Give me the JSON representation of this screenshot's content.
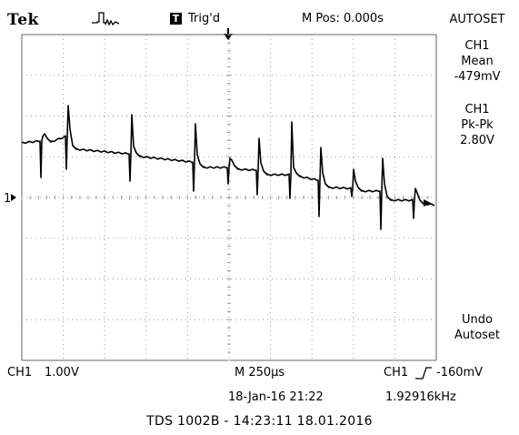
{
  "header": {
    "brand": "Tek",
    "run_icon": "single-pulse-icon",
    "trigger_badge": "T",
    "trigger_status": "Trig'd",
    "mpos": "M Pos: 0.000s"
  },
  "sidebar": {
    "autoset": "AUTOSET",
    "measure1": {
      "channel": "CH1",
      "type": "Mean",
      "value": "-479mV"
    },
    "measure2": {
      "channel": "CH1",
      "type": "Pk-Pk",
      "value": "2.80V"
    },
    "undo": {
      "line1": "Undo",
      "line2": "Autoset"
    }
  },
  "ground_marker": "1",
  "bottom": {
    "ch1_label": "CH1",
    "ch1_scale": "1.00V",
    "timebase": "M 250µs",
    "datetime": "18-Jan-16 21:22",
    "trig_channel": "CH1",
    "trig_slope_icon": "rising-edge-icon",
    "trig_level": "-160mV",
    "frequency": "1.92916kHz"
  },
  "footer": "TDS 1002B - 14:23:11   18.01.2016",
  "colors": {
    "trace": "#000000",
    "grid": "#9a9a9a",
    "background": "#ffffff"
  }
}
